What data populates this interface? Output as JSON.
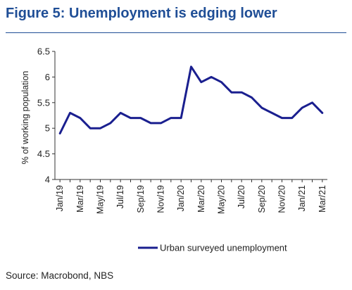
{
  "header": {
    "title": "Figure 5: Unemployment is edging lower"
  },
  "footer": {
    "source": "Source: Macrobond, NBS"
  },
  "colors": {
    "title": "#1f4e96",
    "series": "#1a1f8f",
    "text": "#222222",
    "axis": "#333333"
  },
  "chart_data": {
    "type": "line",
    "title": "",
    "xlabel": "",
    "ylabel": "% of working population",
    "ylim": [
      4,
      6.5
    ],
    "yticks": [
      4,
      4.5,
      5,
      5.5,
      6,
      6.5
    ],
    "ytick_labels": [
      "4",
      "4.5",
      "5",
      "5.5",
      "6",
      "6.5"
    ],
    "grid": false,
    "legend_position": "bottom-right",
    "x": [
      "Jan/19",
      "Feb/19",
      "Mar/19",
      "Apr/19",
      "May/19",
      "Jun/19",
      "Jul/19",
      "Aug/19",
      "Sep/19",
      "Oct/19",
      "Nov/19",
      "Dec/19",
      "Jan/20",
      "Feb/20",
      "Mar/20",
      "Apr/20",
      "May/20",
      "Jun/20",
      "Jul/20",
      "Aug/20",
      "Sep/20",
      "Oct/20",
      "Nov/20",
      "Dec/20",
      "Jan/21",
      "Feb/21",
      "Mar/21"
    ],
    "xtick_labels": [
      "Jan/19",
      "Mar/19",
      "May/19",
      "Jul/19",
      "Sep/19",
      "Nov/19",
      "Jan/20",
      "Mar/20",
      "May/20",
      "Jul/20",
      "Sep/20",
      "Nov/20",
      "Jan/21",
      "Mar/21"
    ],
    "series": [
      {
        "name": "Urban surveyed unemployment",
        "values": [
          4.9,
          5.3,
          5.2,
          5.0,
          5.0,
          5.1,
          5.3,
          5.2,
          5.2,
          5.1,
          5.1,
          5.2,
          5.2,
          6.2,
          5.9,
          6.0,
          5.9,
          5.7,
          5.7,
          5.6,
          5.4,
          5.3,
          5.2,
          5.2,
          5.4,
          5.5,
          5.3
        ]
      }
    ]
  }
}
